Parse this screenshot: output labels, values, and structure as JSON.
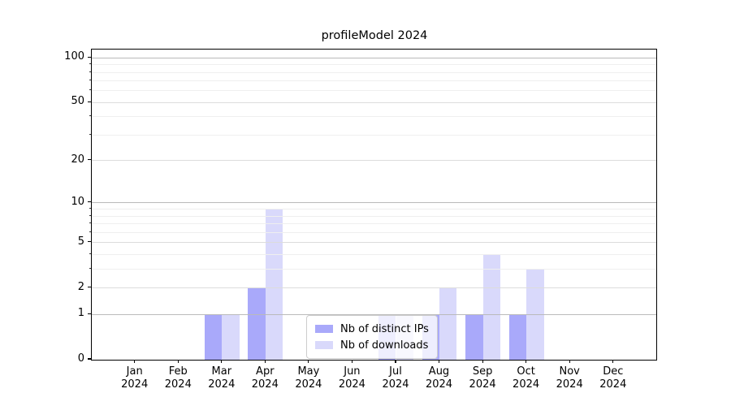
{
  "title": "profileModel 2024",
  "chart_data": {
    "type": "bar",
    "title": "profileModel 2024",
    "categories": [
      "Jan 2024",
      "Feb 2024",
      "Mar 2024",
      "Apr 2024",
      "May 2024",
      "Jun 2024",
      "Jul 2024",
      "Aug 2024",
      "Sep 2024",
      "Oct 2024",
      "Nov 2024",
      "Dec 2024"
    ],
    "series": [
      {
        "name": "Nb of distinct IPs",
        "color": "#a9a9fa",
        "values": [
          0,
          0,
          1,
          2,
          0,
          0,
          1,
          1,
          1,
          1,
          0,
          0
        ]
      },
      {
        "name": "Nb of downloads",
        "color": "#d9d9fb",
        "values": [
          0,
          0,
          1,
          9,
          0,
          0,
          1,
          2,
          4,
          3,
          0,
          0
        ]
      }
    ],
    "xlabel": "",
    "ylabel": "",
    "yscale": "log1p",
    "ylim": [
      0,
      114
    ],
    "yticks_major": [
      0,
      1,
      2,
      5,
      10,
      20,
      50,
      100
    ],
    "yticks_minor": [
      3,
      4,
      6,
      7,
      8,
      9,
      30,
      40,
      60,
      70,
      80,
      90
    ],
    "grid": true,
    "legend_position": "lower center"
  },
  "legend": {
    "items": [
      {
        "label": "Nb of distinct IPs",
        "color": "#a9a9fa"
      },
      {
        "label": "Nb of downloads",
        "color": "#d9d9fb"
      }
    ]
  },
  "colors": {
    "bar_distinct_ips": "#a9a9fa",
    "bar_downloads": "#d9d9fb",
    "grid_decade": "#bababa",
    "grid_labeled": "#dcdcdc",
    "grid_minor": "#efefef",
    "axis": "#000000",
    "legend_border": "#cccccc"
  }
}
